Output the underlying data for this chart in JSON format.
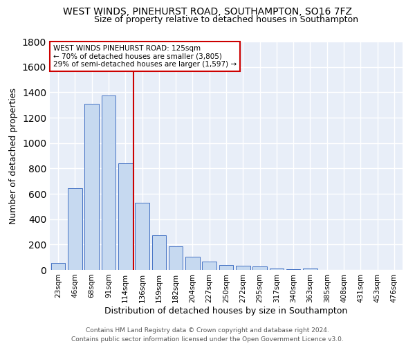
{
  "title1": "WEST WINDS, PINEHURST ROAD, SOUTHAMPTON, SO16 7FZ",
  "title2": "Size of property relative to detached houses in Southampton",
  "xlabel": "Distribution of detached houses by size in Southampton",
  "ylabel": "Number of detached properties",
  "categories": [
    "23sqm",
    "46sqm",
    "68sqm",
    "91sqm",
    "114sqm",
    "136sqm",
    "159sqm",
    "182sqm",
    "204sqm",
    "227sqm",
    "250sqm",
    "272sqm",
    "295sqm",
    "317sqm",
    "340sqm",
    "363sqm",
    "385sqm",
    "408sqm",
    "431sqm",
    "453sqm",
    "476sqm"
  ],
  "values": [
    55,
    645,
    1310,
    1375,
    840,
    530,
    275,
    185,
    105,
    65,
    38,
    35,
    25,
    12,
    3,
    12,
    0,
    0,
    0,
    0,
    0
  ],
  "bar_color": "#c6d9f0",
  "bar_edge_color": "#4472c4",
  "bg_color": "#e8eef8",
  "grid_color": "#ffffff",
  "vline_color": "#cc0000",
  "annotation_line1": "WEST WINDS PINEHURST ROAD: 125sqm",
  "annotation_line2": "← 70% of detached houses are smaller (3,805)",
  "annotation_line3": "29% of semi-detached houses are larger (1,597) →",
  "annotation_box_color": "#ffffff",
  "annotation_box_edge_color": "#cc0000",
  "footnote1": "Contains HM Land Registry data © Crown copyright and database right 2024.",
  "footnote2": "Contains public sector information licensed under the Open Government Licence v3.0.",
  "ylim": [
    0,
    1800
  ],
  "title1_fontsize": 10,
  "title2_fontsize": 9,
  "xlabel_fontsize": 9,
  "ylabel_fontsize": 9,
  "tick_fontsize": 7.5,
  "footnote_fontsize": 6.5,
  "ann_fontsize": 7.5
}
